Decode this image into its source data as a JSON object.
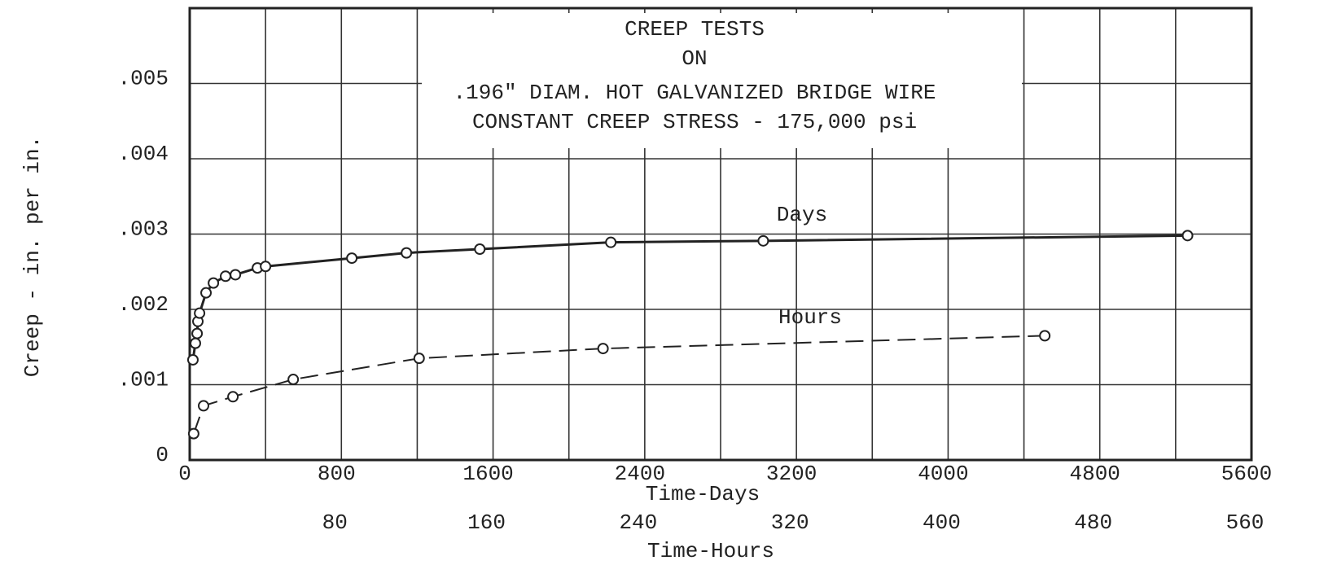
{
  "chart_data": {
    "type": "line",
    "title": [
      "CREEP TESTS",
      "ON",
      ".196\" DIAM. HOT GALVANIZED BRIDGE WIRE",
      "CONSTANT CREEP STRESS - 175,000 psi"
    ],
    "xlabel": "Time-Days",
    "x2label": "Time-Hours",
    "ylabel": "Creep - in. per in.",
    "xlim": [
      0,
      5600
    ],
    "xticks": [
      0,
      800,
      1600,
      2400,
      3200,
      4000,
      4800,
      5600
    ],
    "xminorticks": [
      400,
      1200,
      2000,
      2800,
      3600,
      4400,
      5200
    ],
    "x2lim": [
      0,
      560
    ],
    "x2ticks": [
      80,
      160,
      240,
      320,
      400,
      480,
      560
    ],
    "ylim": [
      0,
      0.006
    ],
    "yticks": [
      {
        "value": 0,
        "label": "0"
      },
      {
        "value": 0.001,
        "label": ".001"
      },
      {
        "value": 0.002,
        "label": ".002"
      },
      {
        "value": 0.003,
        "label": ".003"
      },
      {
        "value": 0.004,
        "label": ".004"
      },
      {
        "value": 0.005,
        "label": ".005"
      }
    ],
    "grid": true,
    "series": [
      {
        "name": "Days",
        "color": "#222",
        "line": "solid",
        "axis": "x",
        "x": [
          17,
          30,
          39,
          43,
          52,
          86,
          125,
          189,
          241,
          357,
          400,
          855,
          1143,
          1530,
          2221,
          3025,
          5263
        ],
        "values": [
          0.00133,
          0.00155,
          0.00168,
          0.00184,
          0.00195,
          0.00222,
          0.00235,
          0.00244,
          0.00246,
          0.00255,
          0.00257,
          0.00268,
          0.00275,
          0.0028,
          0.00289,
          0.00291,
          0.00298
        ]
      },
      {
        "name": "Hours",
        "color": "#222",
        "line": "dashed",
        "axis": "x2",
        "x": [
          2.1,
          7.3,
          22.8,
          54.6,
          121,
          218,
          451
        ],
        "values": [
          0.00035,
          0.00072,
          0.00084,
          0.00107,
          0.00135,
          0.00148,
          0.00165
        ]
      }
    ]
  }
}
